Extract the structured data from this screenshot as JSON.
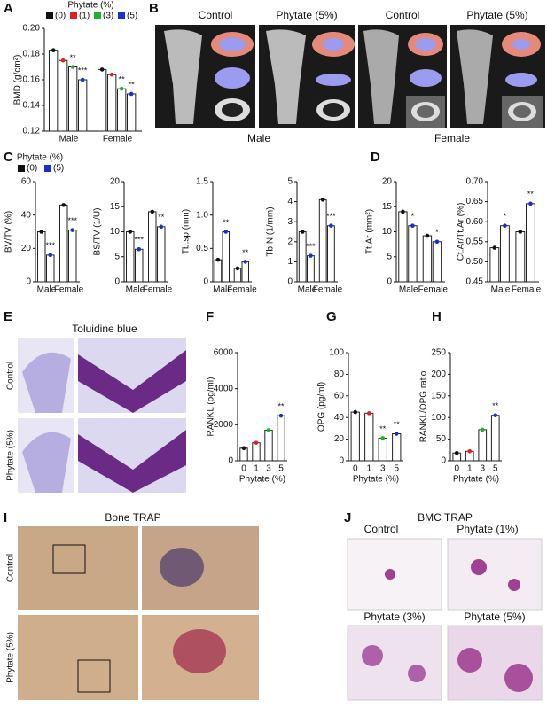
{
  "panel_letters": [
    "A",
    "B",
    "C",
    "D",
    "E",
    "F",
    "G",
    "H",
    "I",
    "J"
  ],
  "microct": {
    "columns": [
      "Control",
      "Phytate (5%)",
      "Control",
      "Phytate (5%)"
    ],
    "groups": [
      "Male",
      "Female"
    ]
  },
  "toluidine": {
    "title": "Toluidine blue",
    "rows": [
      "Control",
      "Phytate (5%)"
    ]
  },
  "bone_trap": {
    "title": "Bone TRAP",
    "rows": [
      "Control",
      "Phytate (5%)"
    ]
  },
  "bmc_trap": {
    "title": "BMC TRAP",
    "panels": [
      "Control",
      "Phytate (1%)",
      "Phytate (3%)",
      "Phytate (5%)"
    ]
  },
  "chart_data": [
    {
      "type": "bar",
      "ylabel": "BMD (g/cm²)",
      "legend_title": "Phytate (%)",
      "categories": [
        "Male",
        "Female"
      ],
      "series": [
        {
          "name": "(0)",
          "color": "#111111",
          "values": [
            0.183,
            0.168
          ],
          "significance": [
            null,
            null
          ]
        },
        {
          "name": "(1)",
          "color": "#e02020",
          "values": [
            0.175,
            0.164
          ],
          "significance": [
            null,
            null
          ]
        },
        {
          "name": "(3)",
          "color": "#20b030",
          "values": [
            0.17,
            0.153
          ],
          "significance": [
            "**",
            "**"
          ]
        },
        {
          "name": "(5)",
          "color": "#1a2fd0",
          "values": [
            0.16,
            0.149
          ],
          "significance": [
            "***",
            "**"
          ]
        }
      ],
      "ylim": [
        0.12,
        0.2
      ],
      "yticks": [
        0.12,
        0.14,
        0.16,
        0.18,
        {
          "value": 0.2,
          "label": "0.20"
        }
      ]
    },
    {
      "type": "bar",
      "ylabel": "BV/TV (%)",
      "legend_title": "Phytate (%)",
      "categories": [
        "Male",
        "Female"
      ],
      "series": [
        {
          "name": "(0)",
          "color": "#111111",
          "values": [
            30,
            46
          ],
          "significance": [
            null,
            null
          ]
        },
        {
          "name": "(5)",
          "color": "#1a2fd0",
          "values": [
            16,
            31
          ],
          "significance": [
            "***",
            "***"
          ]
        }
      ],
      "ylim": [
        0,
        60
      ],
      "yticks": [
        0,
        20,
        40,
        60
      ]
    },
    {
      "type": "bar",
      "ylabel": "BS/TV (1/U)",
      "categories": [
        "Male",
        "Female"
      ],
      "series": [
        {
          "color": "#111111",
          "values": [
            10,
            14
          ],
          "significance": [
            null,
            null
          ]
        },
        {
          "color": "#1a2fd0",
          "values": [
            6.5,
            11
          ],
          "significance": [
            "***",
            "**"
          ]
        }
      ],
      "ylim": [
        0,
        20
      ],
      "yticks": [
        0,
        5,
        10,
        15,
        20
      ]
    },
    {
      "type": "bar",
      "ylabel": "Tb.sp (mm)",
      "categories": [
        "Male",
        "Female"
      ],
      "series": [
        {
          "color": "#111111",
          "values": [
            0.33,
            0.2
          ],
          "significance": [
            null,
            null
          ]
        },
        {
          "color": "#1a2fd0",
          "values": [
            0.75,
            0.3
          ],
          "significance": [
            "**",
            "**"
          ]
        }
      ],
      "ylim": [
        0,
        1.5
      ],
      "yticks": [
        0,
        0.5,
        {
          "value": 1,
          "label": "1.0"
        },
        1.5
      ]
    },
    {
      "type": "bar",
      "ylabel": "Tb.N (1/mm)",
      "categories": [
        "Male",
        "Female"
      ],
      "series": [
        {
          "color": "#111111",
          "values": [
            2.5,
            4.1
          ],
          "significance": [
            null,
            null
          ]
        },
        {
          "color": "#1a2fd0",
          "values": [
            1.3,
            2.8
          ],
          "significance": [
            "***",
            "***"
          ]
        }
      ],
      "ylim": [
        0,
        5
      ],
      "yticks": [
        0,
        1,
        2,
        3,
        4,
        5
      ]
    },
    {
      "type": "bar",
      "ylabel": "Tt.Ar (mm²)",
      "categories": [
        "Male",
        "Female"
      ],
      "series": [
        {
          "color": "#111111",
          "values": [
            14,
            9.2
          ],
          "significance": [
            null,
            null
          ]
        },
        {
          "color": "#1a2fd0",
          "values": [
            11.2,
            8
          ],
          "significance": [
            "*",
            "*"
          ]
        }
      ],
      "ylim": [
        0,
        20
      ],
      "yticks": [
        0,
        5,
        10,
        15,
        20
      ]
    },
    {
      "type": "bar",
      "ylabel": "Ct.Ar/Tt.Ar (%)",
      "categories": [
        "Male",
        "Female"
      ],
      "series": [
        {
          "color": "#111111",
          "values": [
            0.535,
            0.575
          ],
          "significance": [
            null,
            null
          ]
        },
        {
          "color": "#1a2fd0",
          "values": [
            0.59,
            0.645
          ],
          "significance": [
            "*",
            "**"
          ]
        }
      ],
      "ylim": [
        0.45,
        0.7
      ],
      "yticks": [
        0.45,
        {
          "value": 0.5,
          "label": "0.50"
        },
        0.55,
        {
          "value": 0.6,
          "label": "0.60"
        },
        0.65,
        {
          "value": 0.7,
          "label": "0.70"
        }
      ]
    },
    {
      "type": "bar",
      "ylabel": "RANKL (pg/ml)",
      "xlabel": "Phytate (%)",
      "categories": [
        "0",
        "1",
        "3",
        "5"
      ],
      "values": [
        700,
        1000,
        1700,
        2500
      ],
      "colors": [
        "#111111",
        "#e02020",
        "#20b030",
        "#1a2fd0"
      ],
      "significance": [
        null,
        null,
        null,
        "**"
      ],
      "ylim": [
        0,
        6000
      ],
      "yticks": [
        0,
        2000,
        4000,
        6000
      ]
    },
    {
      "type": "bar",
      "ylabel": "OPG (pg/ml)",
      "xlabel": "Phytate (%)",
      "categories": [
        "0",
        "1",
        "3",
        "5"
      ],
      "values": [
        45,
        44,
        21,
        25
      ],
      "colors": [
        "#111111",
        "#e02020",
        "#20b030",
        "#1a2fd0"
      ],
      "significance": [
        null,
        null,
        "**",
        "**"
      ],
      "ylim": [
        0,
        100
      ],
      "yticks": [
        0,
        20,
        40,
        60,
        80,
        100
      ]
    },
    {
      "type": "bar",
      "ylabel": "RANKL/OPG ratio",
      "xlabel": "Phytate (%)",
      "categories": [
        "0",
        "1",
        "3",
        "5"
      ],
      "values": [
        18,
        22,
        72,
        105
      ],
      "colors": [
        "#111111",
        "#e02020",
        "#20b030",
        "#1a2fd0"
      ],
      "significance": [
        null,
        null,
        null,
        "**"
      ],
      "ylim": [
        0,
        250
      ],
      "yticks": [
        0,
        50,
        100,
        150,
        200,
        250
      ]
    }
  ]
}
